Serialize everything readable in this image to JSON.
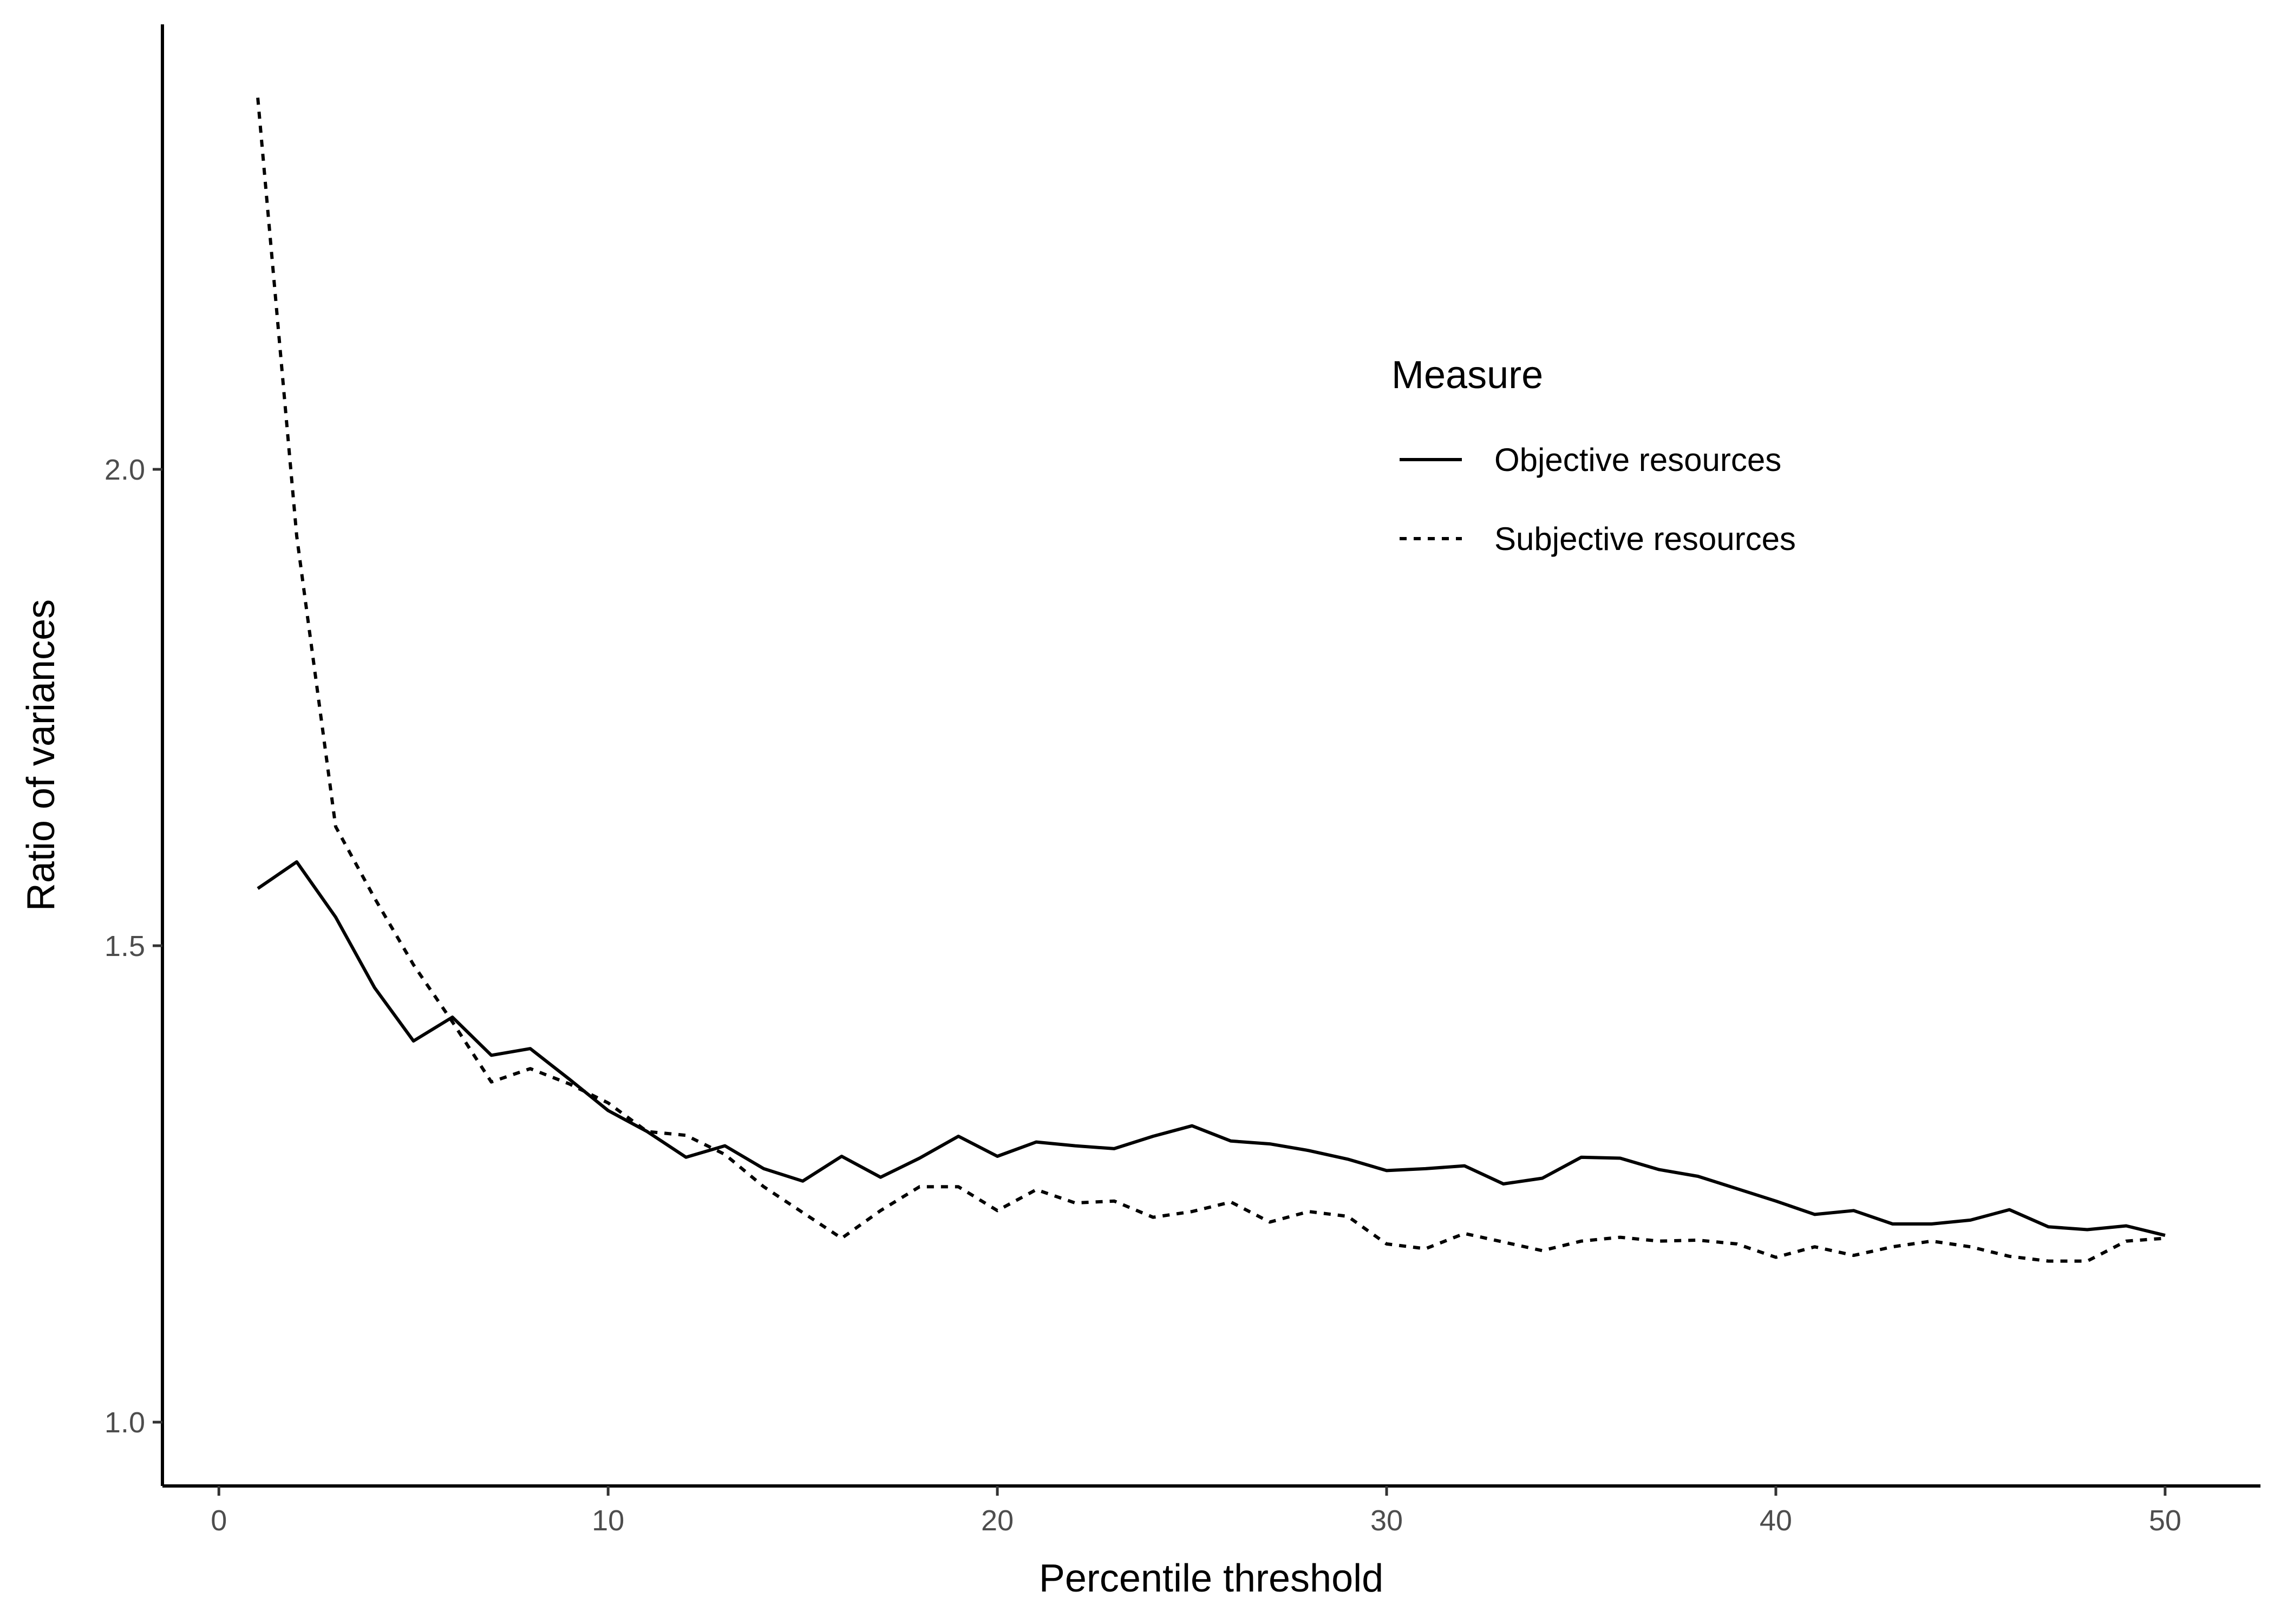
{
  "chart_data": {
    "type": "line",
    "xlabel": "Percentile threshold",
    "ylabel": "Ratio of variances",
    "xlim": [
      -1.45,
      52.45
    ],
    "ylim": [
      0.933,
      2.467
    ],
    "xticks": [
      0,
      10,
      20,
      30,
      40,
      50
    ],
    "yticks": [
      1.0,
      1.5,
      2.0
    ],
    "xtick_labels": [
      "0",
      "10",
      "20",
      "30",
      "40",
      "50"
    ],
    "ytick_labels": [
      "1.0",
      "1.5",
      "2.0"
    ],
    "grid": false,
    "legend": {
      "title": "Measure",
      "placement": "top-right-inside"
    },
    "x": [
      1,
      2,
      3,
      4,
      5,
      6,
      7,
      8,
      9,
      10,
      11,
      12,
      13,
      14,
      15,
      16,
      17,
      18,
      19,
      20,
      21,
      22,
      23,
      24,
      25,
      26,
      27,
      28,
      29,
      30,
      31,
      32,
      33,
      34,
      35,
      36,
      37,
      38,
      39,
      40,
      41,
      42,
      43,
      44,
      45,
      46,
      47,
      48,
      49,
      50
    ],
    "series": [
      {
        "name": "Objective resources",
        "line_style": "solid",
        "color": "#000000",
        "values": [
          1.56,
          1.588,
          1.53,
          1.456,
          1.4,
          1.425,
          1.385,
          1.392,
          1.36,
          1.327,
          1.305,
          1.278,
          1.29,
          1.266,
          1.253,
          1.279,
          1.257,
          1.277,
          1.3,
          1.279,
          1.294,
          1.29,
          1.287,
          1.3,
          1.311,
          1.295,
          1.292,
          1.285,
          1.276,
          1.264,
          1.266,
          1.269,
          1.25,
          1.256,
          1.278,
          1.277,
          1.265,
          1.258,
          1.245,
          1.232,
          1.218,
          1.222,
          1.208,
          1.208,
          1.212,
          1.223,
          1.205,
          1.202,
          1.206,
          1.196
        ]
      },
      {
        "name": "Subjective resources",
        "line_style": "dashed",
        "color": "#000000",
        "values": [
          2.39,
          1.93,
          1.625,
          1.55,
          1.48,
          1.42,
          1.357,
          1.371,
          1.355,
          1.335,
          1.305,
          1.301,
          1.281,
          1.247,
          1.22,
          1.193,
          1.222,
          1.247,
          1.247,
          1.222,
          1.244,
          1.23,
          1.232,
          1.215,
          1.221,
          1.231,
          1.21,
          1.221,
          1.216,
          1.187,
          1.182,
          1.198,
          1.189,
          1.18,
          1.19,
          1.194,
          1.19,
          1.191,
          1.187,
          1.173,
          1.184,
          1.175,
          1.184,
          1.19,
          1.184,
          1.174,
          1.169,
          1.169,
          1.19,
          1.193
        ]
      }
    ]
  }
}
